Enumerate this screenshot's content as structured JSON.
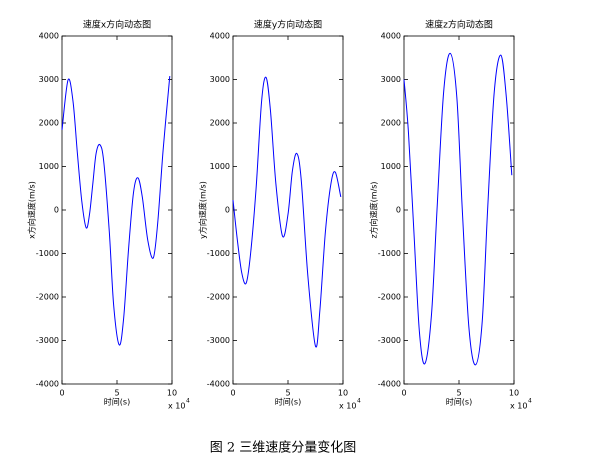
{
  "chart_data": [
    {
      "type": "line",
      "title": "速度x方向动态图",
      "xlabel": "时间(s)",
      "ylabel": "x方向速度(m/s)",
      "x_scale_label": "x 10",
      "x_scale_exponent": "4",
      "x": [
        0,
        0.55,
        1.0,
        1.4,
        1.8,
        2.2,
        2.5,
        2.8,
        3.1,
        3.45,
        3.8,
        4.3,
        4.7,
        5.2,
        5.6,
        6.05,
        6.5,
        6.9,
        7.3,
        7.8,
        8.3,
        8.7,
        9.2,
        9.8
      ],
      "series": [
        {
          "color": "#0000ff",
          "values": [
            1840,
            2990,
            2500,
            1300,
            200,
            -410,
            -100,
            600,
            1300,
            1500,
            1100,
            -500,
            -2200,
            -3100,
            -2500,
            -900,
            400,
            740,
            300,
            -700,
            -1100,
            -300,
            1400,
            3080
          ]
        }
      ],
      "xlim": [
        0,
        10
      ],
      "xticks": [
        0,
        5,
        10
      ],
      "ylim": [
        -4000,
        4000
      ],
      "yticks": [
        -4000,
        -3000,
        -2000,
        -1000,
        0,
        1000,
        2000,
        3000,
        4000
      ]
    },
    {
      "type": "line",
      "title": "速度y方向动态图",
      "xlabel": "时间(s)",
      "ylabel": "y方向速度(m/s)",
      "x_scale_label": "x 10",
      "x_scale_exponent": "4",
      "x": [
        0,
        0.4,
        0.8,
        1.2,
        1.6,
        2.1,
        2.6,
        3.0,
        3.4,
        3.9,
        4.5,
        5.0,
        5.4,
        5.8,
        6.2,
        6.8,
        7.5,
        7.9,
        8.4,
        8.9,
        9.3,
        9.8
      ],
      "series": [
        {
          "color": "#0000ff",
          "values": [
            230,
            -700,
            -1450,
            -1680,
            -1000,
            500,
            2500,
            3050,
            2300,
            600,
            -600,
            -100,
            900,
            1300,
            700,
            -1500,
            -3130,
            -2300,
            -500,
            600,
            870,
            300
          ]
        }
      ],
      "xlim": [
        0,
        10
      ],
      "xticks": [
        0,
        5,
        10
      ],
      "ylim": [
        -4000,
        4000
      ],
      "yticks": [
        -4000,
        -3000,
        -2000,
        -1000,
        0,
        1000,
        2000,
        3000,
        4000
      ]
    },
    {
      "type": "line",
      "title": "速度z方向动态图",
      "xlabel": "时间(s)",
      "ylabel": "z方向速度(m/s)",
      "x_scale_label": "x 10",
      "x_scale_exponent": "4",
      "x": [
        0,
        0.4,
        0.9,
        1.4,
        1.9,
        2.5,
        3.0,
        3.6,
        4.2,
        4.8,
        5.3,
        5.9,
        6.5,
        7.1,
        7.6,
        8.2,
        8.8,
        9.3,
        9.8
      ],
      "series": [
        {
          "color": "#0000ff",
          "values": [
            3000,
            1800,
            -500,
            -2800,
            -3530,
            -2400,
            0,
            2700,
            3600,
            2600,
            0,
            -2700,
            -3560,
            -2600,
            0,
            2700,
            3560,
            2600,
            800
          ]
        }
      ],
      "xlim": [
        0,
        10
      ],
      "xticks": [
        0,
        5,
        10
      ],
      "ylim": [
        -4000,
        4000
      ],
      "yticks": [
        -4000,
        -3000,
        -2000,
        -1000,
        0,
        1000,
        2000,
        3000,
        4000
      ]
    }
  ],
  "caption": "图 2  三维速度分量变化图"
}
